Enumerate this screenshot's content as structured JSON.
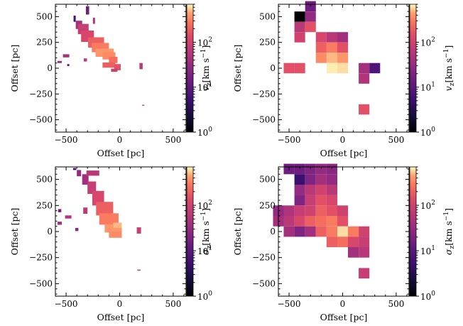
{
  "chart_data": [
    {
      "type": "heatmap",
      "panel": "top-left",
      "quantity": "vz",
      "resolution": "fine",
      "xlabel": "Offset [pc]",
      "ylabel": "Offset [pc]",
      "xlim": [
        -600,
        620
      ],
      "ylim": [
        -620,
        620
      ],
      "xticks": [
        -500,
        0,
        500
      ],
      "yticks": [
        -500,
        -250,
        0,
        250,
        500
      ],
      "colorbar": {
        "label_var": "v",
        "label_sub": "z",
        "label_unit": "[km s",
        "label_exp": "−1",
        "label_close": "]",
        "scale": "log",
        "range": [
          1,
          700
        ],
        "ticks": [
          1,
          10,
          100
        ]
      },
      "colormap": "magma",
      "cells": [
        [
          -420,
          480,
          20,
          60,
          6
        ],
        [
          -300,
          560,
          30,
          80,
          15
        ],
        [
          -380,
          420,
          60,
          80,
          40
        ],
        [
          -340,
          380,
          100,
          100,
          80
        ],
        [
          -300,
          310,
          120,
          110,
          120
        ],
        [
          -220,
          250,
          150,
          100,
          200
        ],
        [
          -180,
          200,
          160,
          90,
          300
        ],
        [
          -140,
          150,
          170,
          80,
          400
        ],
        [
          -100,
          120,
          120,
          70,
          350
        ],
        [
          -60,
          80,
          80,
          60,
          250
        ],
        [
          -100,
          30,
          120,
          50,
          200
        ],
        [
          -20,
          10,
          60,
          60,
          150
        ],
        [
          -50,
          -20,
          60,
          30,
          90
        ],
        [
          200,
          20,
          30,
          60,
          60
        ],
        [
          -500,
          120,
          60,
          30,
          40
        ],
        [
          -560,
          60,
          40,
          20,
          30
        ],
        [
          -480,
          30,
          20,
          20,
          10
        ],
        [
          -320,
          80,
          30,
          30,
          70
        ],
        [
          -240,
          460,
          20,
          60,
          50
        ],
        [
          220,
          -360,
          20,
          10,
          100
        ]
      ],
      "colorbar_ticks_text": [
        "10^0",
        "10^1",
        "10^2"
      ]
    },
    {
      "type": "heatmap",
      "panel": "top-right",
      "quantity": "vz",
      "resolution": "binned",
      "xlabel": "Offset [pc]",
      "ylabel": "Offset [pc]",
      "xlim": [
        -600,
        620
      ],
      "ylim": [
        -620,
        620
      ],
      "xticks": [
        -500,
        0,
        500
      ],
      "yticks": [
        -500,
        -250,
        0,
        250,
        500
      ],
      "bin_size": 100,
      "colorbar": {
        "label_var": "v",
        "label_sub": "z",
        "label_unit": "[km s",
        "label_exp": "−1",
        "label_close": "]",
        "scale": "log",
        "range": [
          1,
          700
        ],
        "ticks": [
          1,
          10,
          100
        ]
      },
      "colormap": "magma",
      "cells": [
        [
          -400,
          500,
          1
        ],
        [
          -300,
          600,
          15
        ],
        [
          -300,
          500,
          30
        ],
        [
          -400,
          400,
          60
        ],
        [
          -300,
          400,
          150
        ],
        [
          -400,
          300,
          100
        ],
        [
          -200,
          300,
          120
        ],
        [
          -100,
          300,
          60
        ],
        [
          0,
          300,
          40
        ],
        [
          -200,
          200,
          200
        ],
        [
          -100,
          200,
          300
        ],
        [
          0,
          200,
          150
        ],
        [
          -200,
          100,
          350
        ],
        [
          -100,
          100,
          500
        ],
        [
          0,
          100,
          400
        ],
        [
          -100,
          0,
          650
        ],
        [
          0,
          0,
          600
        ],
        [
          -500,
          0,
          150
        ],
        [
          -400,
          0,
          150
        ],
        [
          200,
          0,
          40
        ],
        [
          300,
          0,
          8
        ],
        [
          200,
          -100,
          50
        ],
        [
          200,
          -400,
          150
        ]
      ],
      "colorbar_ticks_text": [
        "10^0",
        "10^1",
        "10^2"
      ]
    },
    {
      "type": "heatmap",
      "panel": "bottom-left",
      "quantity": "sigma_z",
      "resolution": "fine",
      "xlabel": "Offset [pc]",
      "ylabel": "Offset [pc]",
      "xlim": [
        -600,
        620
      ],
      "ylim": [
        -620,
        620
      ],
      "xticks": [
        -500,
        0,
        500
      ],
      "yticks": [
        -500,
        -250,
        0,
        250,
        500
      ],
      "colorbar": {
        "label_var": "σ",
        "label_sub": "z",
        "label_unit": "[km s",
        "label_exp": "−1",
        "label_close": "]",
        "scale": "log",
        "range": [
          1,
          700
        ],
        "ticks": [
          1,
          10,
          100
        ]
      },
      "colormap": "magma",
      "cells": [
        [
          -380,
          560,
          40,
          60,
          30
        ],
        [
          -320,
          500,
          60,
          100,
          40
        ],
        [
          -250,
          560,
          120,
          50,
          60
        ],
        [
          -260,
          420,
          80,
          120,
          80
        ],
        [
          -200,
          320,
          110,
          140,
          120
        ],
        [
          -140,
          220,
          160,
          130,
          200
        ],
        [
          -100,
          120,
          180,
          110,
          300
        ],
        [
          -60,
          30,
          160,
          80,
          400
        ],
        [
          -40,
          -30,
          120,
          60,
          350
        ],
        [
          -20,
          60,
          80,
          50,
          500
        ],
        [
          180,
          10,
          40,
          60,
          80
        ],
        [
          -560,
          80,
          40,
          30,
          40
        ],
        [
          -480,
          140,
          60,
          30,
          50
        ],
        [
          -400,
          20,
          30,
          30,
          25
        ],
        [
          -320,
          200,
          40,
          60,
          70
        ],
        [
          -560,
          200,
          30,
          30,
          15
        ],
        [
          180,
          -370,
          30,
          10,
          60
        ],
        [
          -420,
          600,
          30,
          20,
          8
        ]
      ],
      "colorbar_ticks_text": [
        "10^0",
        "10^1",
        "10^2"
      ]
    },
    {
      "type": "heatmap",
      "panel": "bottom-right",
      "quantity": "sigma_z",
      "resolution": "binned",
      "xlabel": "Offset [pc]",
      "ylabel": "Offset [pc]",
      "xlim": [
        -600,
        620
      ],
      "ylim": [
        -620,
        620
      ],
      "xticks": [
        -500,
        0,
        500
      ],
      "yticks": [
        -500,
        -250,
        0,
        250,
        500
      ],
      "bin_size": 100,
      "colorbar": {
        "label_var": "σ",
        "label_sub": "z",
        "label_unit": "[km s",
        "label_exp": "−1",
        "label_close": "]",
        "scale": "log",
        "range": [
          1,
          700
        ],
        "ticks": [
          1,
          10,
          100
        ]
      },
      "colormap": "magma",
      "cells": [
        [
          -500,
          600,
          15
        ],
        [
          -400,
          600,
          15
        ],
        [
          -300,
          600,
          20
        ],
        [
          -200,
          600,
          30
        ],
        [
          -100,
          600,
          25
        ],
        [
          -400,
          500,
          5
        ],
        [
          -300,
          500,
          20
        ],
        [
          -200,
          500,
          40
        ],
        [
          -100,
          500,
          30
        ],
        [
          -400,
          400,
          30
        ],
        [
          -300,
          400,
          60
        ],
        [
          -200,
          400,
          100
        ],
        [
          -100,
          400,
          60
        ],
        [
          -400,
          300,
          20
        ],
        [
          -300,
          300,
          80
        ],
        [
          -200,
          300,
          150
        ],
        [
          -100,
          300,
          120
        ],
        [
          -600,
          200,
          30
        ],
        [
          -500,
          200,
          50
        ],
        [
          -400,
          200,
          80
        ],
        [
          -300,
          200,
          100
        ],
        [
          -200,
          200,
          200
        ],
        [
          -100,
          200,
          150
        ],
        [
          0,
          200,
          100
        ],
        [
          -600,
          100,
          40
        ],
        [
          -500,
          100,
          60
        ],
        [
          -400,
          100,
          120
        ],
        [
          -300,
          100,
          200
        ],
        [
          -200,
          100,
          250
        ],
        [
          -100,
          100,
          300
        ],
        [
          0,
          100,
          150
        ],
        [
          -500,
          0,
          40
        ],
        [
          -400,
          0,
          20
        ],
        [
          -300,
          0,
          40
        ],
        [
          -200,
          0,
          200
        ],
        [
          -100,
          0,
          300
        ],
        [
          0,
          0,
          600
        ],
        [
          100,
          0,
          300
        ],
        [
          200,
          0,
          100
        ],
        [
          -100,
          -100,
          200
        ],
        [
          0,
          -100,
          250
        ],
        [
          100,
          -100,
          120
        ],
        [
          200,
          -100,
          80
        ],
        [
          100,
          -200,
          40
        ],
        [
          200,
          -200,
          60
        ],
        [
          200,
          -400,
          80
        ]
      ],
      "colorbar_ticks_text": [
        "10^0",
        "10^1",
        "10^2"
      ]
    }
  ]
}
